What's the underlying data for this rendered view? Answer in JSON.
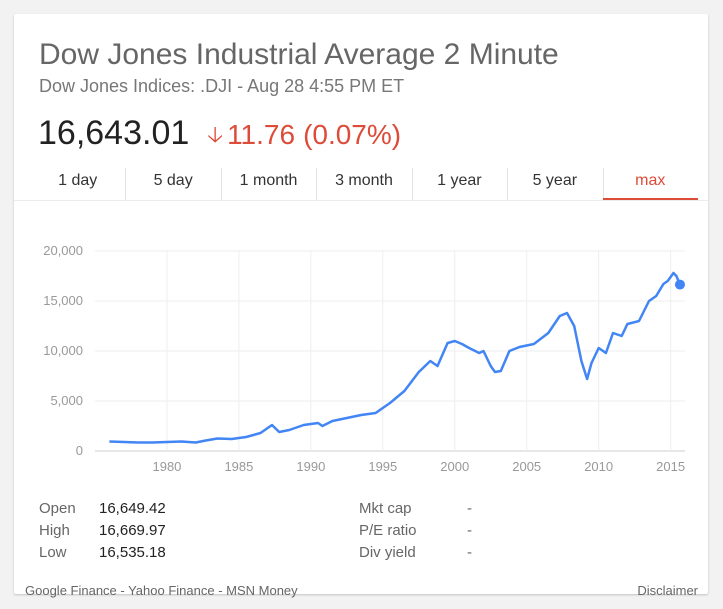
{
  "header": {
    "title": "Dow Jones Industrial Average 2 Minute",
    "subtitle": "Dow Jones Indices: .DJI - Aug 28 4:55 PM ET"
  },
  "quote": {
    "price": "16,643.01",
    "direction": "down",
    "change": "11.76",
    "change_pct": "(0.07%)",
    "color_down": "#dd4b39"
  },
  "tabs": [
    {
      "label": "1 day"
    },
    {
      "label": "5 day"
    },
    {
      "label": "1 month"
    },
    {
      "label": "3 month"
    },
    {
      "label": "1 year"
    },
    {
      "label": "5 year"
    },
    {
      "label": "max",
      "active": true
    }
  ],
  "chart_data": {
    "type": "line",
    "title": "",
    "xlabel": "",
    "ylabel": "",
    "line_color": "#4285f4",
    "y_ticks": [
      "20,000",
      "15,000",
      "10,000",
      "5,000",
      "0"
    ],
    "x_ticks": [
      "1980",
      "1985",
      "1990",
      "1995",
      "2000",
      "2005",
      "2010",
      "2015"
    ],
    "xlim": [
      1975,
      2016
    ],
    "ylim": [
      0,
      20000
    ],
    "grid": true,
    "series": [
      {
        "x": [
          1976.0,
          1977.0,
          1978.0,
          1979.0,
          1980.0,
          1981.0,
          1982.0,
          1982.7,
          1983.5,
          1984.5,
          1985.5,
          1986.5,
          1987.3,
          1987.8,
          1988.5,
          1989.5,
          1990.5,
          1990.8,
          1991.5,
          1992.5,
          1993.5,
          1994.5,
          1995.5,
          1996.5,
          1997.5,
          1998.3,
          1998.8,
          1999.5,
          2000.0,
          2000.5,
          2001.0,
          2001.7,
          2002.0,
          2002.5,
          2002.8,
          2003.2,
          2003.8,
          2004.5,
          2005.5,
          2006.5,
          2007.3,
          2007.8,
          2008.3,
          2008.8,
          2009.2,
          2009.5,
          2010.0,
          2010.5,
          2011.0,
          2011.6,
          2012.0,
          2012.8,
          2013.5,
          2014.0,
          2014.5,
          2014.8,
          2015.2,
          2015.4,
          2015.65
        ],
        "y": [
          950,
          900,
          850,
          850,
          900,
          950,
          850,
          1050,
          1250,
          1200,
          1400,
          1800,
          2600,
          1900,
          2100,
          2600,
          2800,
          2500,
          3000,
          3300,
          3600,
          3800,
          4800,
          6000,
          7900,
          9000,
          8500,
          10800,
          11000,
          10700,
          10300,
          9800,
          10000,
          8500,
          7900,
          8000,
          10000,
          10400,
          10700,
          11800,
          13500,
          13800,
          12500,
          9000,
          7200,
          8800,
          10300,
          9800,
          11800,
          11500,
          12700,
          13000,
          15000,
          15500,
          16700,
          17000,
          17800,
          17500,
          16643.01
        ]
      }
    ]
  },
  "stats": {
    "left": [
      {
        "label": "Open",
        "value": "16,649.42"
      },
      {
        "label": "High",
        "value": "16,669.97"
      },
      {
        "label": "Low",
        "value": "16,535.18"
      }
    ],
    "right": [
      {
        "label": "Mkt cap",
        "value": "-"
      },
      {
        "label": "P/E ratio",
        "value": "-"
      },
      {
        "label": "Div yield",
        "value": "-"
      }
    ]
  },
  "footer": {
    "sources": "Google Finance - Yahoo Finance - MSN Money",
    "disclaimer": "Disclaimer"
  }
}
